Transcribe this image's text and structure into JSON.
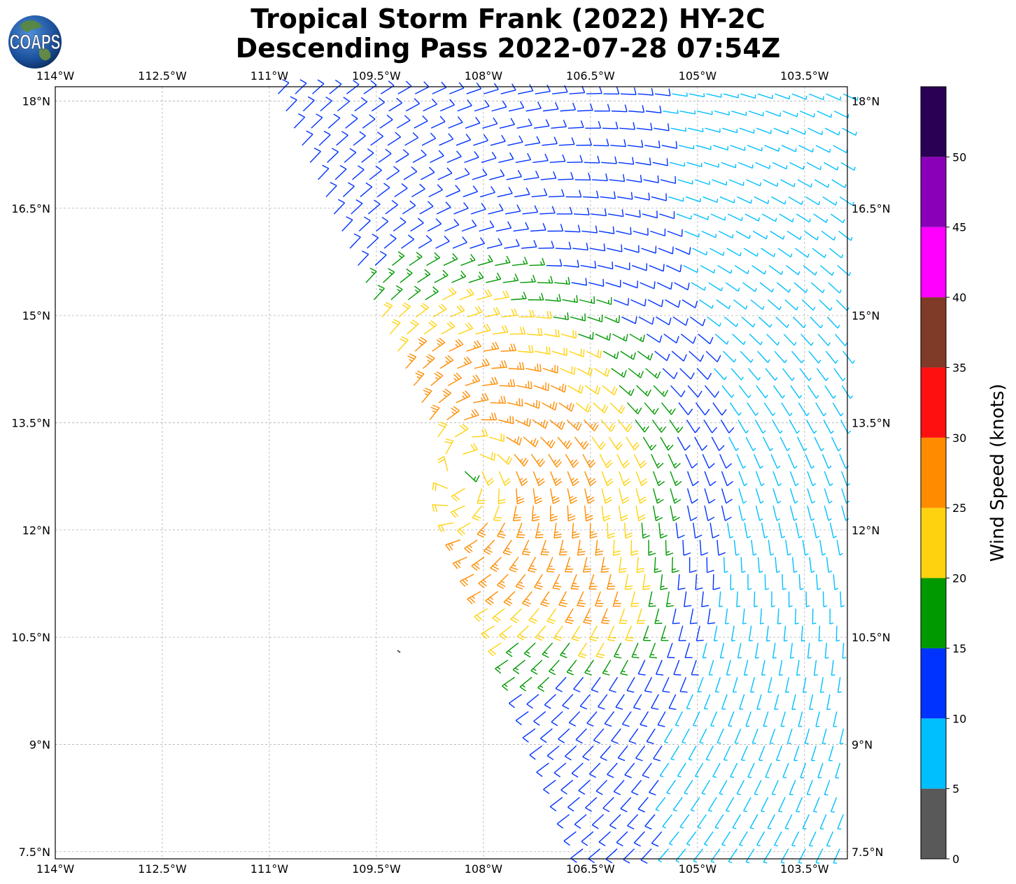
{
  "title": {
    "line1": "Tropical Storm Frank (2022) HY-2C",
    "line2": "Descending Pass 2022-07-28 07:54Z"
  },
  "logo": {
    "text": "COAPS",
    "icon": "globe-icon"
  },
  "map": {
    "lon_ticks": [
      "114°W",
      "112.5°W",
      "111°W",
      "109.5°W",
      "108°W",
      "106.5°W",
      "105°W",
      "103.5°W"
    ],
    "lat_ticks": [
      "18°N",
      "16.5°N",
      "15°N",
      "13.5°N",
      "12°N",
      "10.5°N",
      "9°N",
      "7.5°N"
    ],
    "lon_range": [
      -114,
      -102.9
    ],
    "lat_range": [
      7.4,
      18.2
    ],
    "gridlines": true,
    "storm_center": {
      "lon": -108.3,
      "lat": 12.8
    },
    "secondary_max": {
      "lon": -106.2,
      "lat": 11.0
    }
  },
  "colorbar": {
    "label": "Wind Speed (knots)",
    "ticks": [
      "0",
      "5",
      "10",
      "15",
      "20",
      "25",
      "30",
      "35",
      "40",
      "45",
      "50"
    ],
    "colors": [
      "#595959",
      "#00bfff",
      "#0033ff",
      "#009900",
      "#ffd20f",
      "#ff8c00",
      "#ff1010",
      "#7f3a28",
      "#ff00ff",
      "#8a00b8",
      "#2a0055"
    ],
    "range": [
      0,
      55
    ]
  }
}
